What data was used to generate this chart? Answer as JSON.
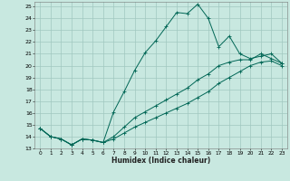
{
  "xlabel": "Humidex (Indice chaleur)",
  "bg_color": "#c8e8e0",
  "grid_color": "#a0c8c0",
  "line_color": "#006655",
  "xlim": [
    -0.5,
    23.5
  ],
  "ylim": [
    13,
    25.4
  ],
  "xticks": [
    0,
    1,
    2,
    3,
    4,
    5,
    6,
    7,
    8,
    9,
    10,
    11,
    12,
    13,
    14,
    15,
    16,
    17,
    18,
    19,
    20,
    21,
    22,
    23
  ],
  "yticks": [
    13,
    14,
    15,
    16,
    17,
    18,
    19,
    20,
    21,
    22,
    23,
    24,
    25
  ],
  "line1_x": [
    0,
    1,
    2,
    3,
    4,
    5,
    6,
    7,
    8,
    9,
    10,
    11,
    12,
    13,
    14,
    15,
    16,
    17,
    18,
    19,
    20,
    21,
    22,
    23
  ],
  "line1_y": [
    14.7,
    14.0,
    13.8,
    13.3,
    13.8,
    13.7,
    13.5,
    16.1,
    17.8,
    19.6,
    21.1,
    22.1,
    23.3,
    24.5,
    24.4,
    25.2,
    24.0,
    21.6,
    22.5,
    21.0,
    20.6,
    20.8,
    21.0,
    20.2
  ],
  "line2_x": [
    0,
    1,
    2,
    3,
    4,
    5,
    6,
    7,
    8,
    9,
    10,
    11,
    12,
    13,
    14,
    15,
    16,
    17,
    18,
    19,
    20,
    21,
    22,
    23
  ],
  "line2_y": [
    14.7,
    14.0,
    13.8,
    13.3,
    13.8,
    13.7,
    13.5,
    14.0,
    14.8,
    15.6,
    16.1,
    16.6,
    17.1,
    17.6,
    18.1,
    18.8,
    19.3,
    20.0,
    20.3,
    20.5,
    20.5,
    21.0,
    20.6,
    20.2
  ],
  "line3_x": [
    0,
    1,
    2,
    3,
    4,
    5,
    6,
    7,
    8,
    9,
    10,
    11,
    12,
    13,
    14,
    15,
    16,
    17,
    18,
    19,
    20,
    21,
    22,
    23
  ],
  "line3_y": [
    14.7,
    14.0,
    13.8,
    13.3,
    13.8,
    13.7,
    13.5,
    13.8,
    14.3,
    14.8,
    15.2,
    15.6,
    16.0,
    16.4,
    16.8,
    17.3,
    17.8,
    18.5,
    19.0,
    19.5,
    20.0,
    20.3,
    20.4,
    20.0
  ]
}
